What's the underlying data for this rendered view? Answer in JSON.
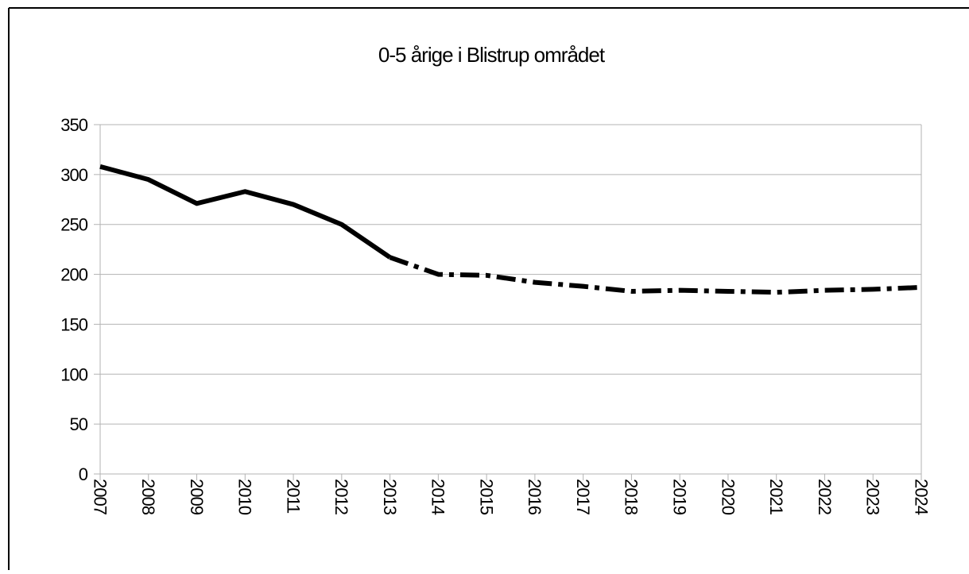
{
  "chart_data": {
    "type": "line",
    "title": "0-5 årige i Blistrup området",
    "categories": [
      "2007",
      "2008",
      "2009",
      "2010",
      "2011",
      "2012",
      "2013",
      "2014",
      "2015",
      "2016",
      "2017",
      "2018",
      "2019",
      "2020",
      "2021",
      "2022",
      "2023",
      "2024"
    ],
    "series": [
      {
        "color": "#000000",
        "dash": "solid",
        "values": [
          308,
          295,
          271,
          283,
          270,
          250,
          217,
          null,
          null,
          null,
          null,
          null,
          null,
          null,
          null,
          null,
          null,
          null
        ]
      },
      {
        "color": "#000000",
        "dash": "dashdot",
        "values": [
          null,
          null,
          null,
          null,
          null,
          null,
          217,
          200,
          199,
          192,
          188,
          183,
          184,
          183,
          182,
          184,
          185,
          187
        ]
      }
    ],
    "ylim": [
      0,
      350
    ],
    "yticks": [
      0,
      50,
      100,
      150,
      200,
      250,
      300,
      350
    ],
    "grid": true
  }
}
